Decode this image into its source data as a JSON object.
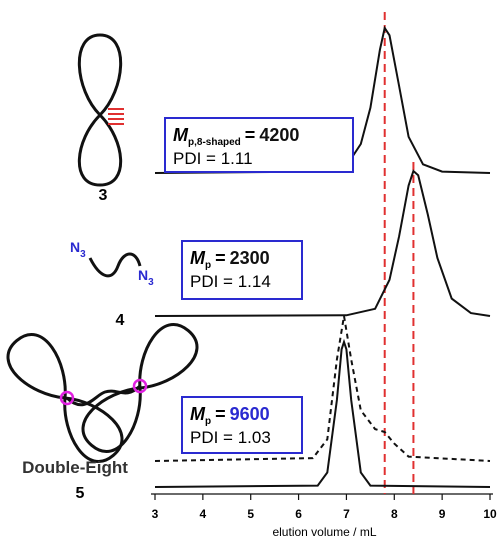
{
  "chart_data": {
    "type": "line",
    "xlabel": "elution volume / mL",
    "xlim": [
      3,
      10
    ],
    "xticks": [
      3,
      4,
      5,
      6,
      7,
      8,
      9,
      10
    ],
    "ylim": [
      0,
      1
    ],
    "reference_lines": [
      7.8,
      8.4
    ],
    "reference_color": "#e03030",
    "series": [
      {
        "color": "#111111",
        "dash": false,
        "x": [
          3,
          6.5,
          7.0,
          7.3,
          7.5,
          7.7,
          7.8,
          7.9,
          8.1,
          8.3,
          8.6,
          9.0,
          10
        ],
        "values": [
          0,
          0.01,
          0.05,
          0.2,
          0.45,
          0.85,
          1,
          0.95,
          0.6,
          0.25,
          0.06,
          0.01,
          0
        ]
      },
      {
        "color": "#111111",
        "dash": false,
        "x": [
          3,
          7.0,
          7.6,
          7.9,
          8.1,
          8.3,
          8.4,
          8.5,
          8.7,
          8.9,
          9.2,
          9.6,
          10
        ],
        "values": [
          0,
          0.005,
          0.05,
          0.25,
          0.55,
          0.9,
          1,
          0.97,
          0.7,
          0.4,
          0.12,
          0.02,
          0
        ]
      },
      {
        "color": "#111111",
        "dash": false,
        "x": [
          3,
          6.4,
          6.6,
          6.8,
          6.9,
          6.95,
          7.0,
          7.1,
          7.3,
          7.5,
          10
        ],
        "values": [
          0,
          0.01,
          0.1,
          0.6,
          0.95,
          1,
          0.95,
          0.6,
          0.1,
          0.01,
          0
        ]
      },
      {
        "color": "#111111",
        "dash": true,
        "x": [
          3,
          6.3,
          6.6,
          6.8,
          6.95,
          7.1,
          7.3,
          7.6,
          7.8,
          8.0,
          8.3,
          10
        ],
        "values": [
          0,
          0.02,
          0.15,
          0.7,
          1,
          0.7,
          0.35,
          0.22,
          0.2,
          0.12,
          0.03,
          0
        ]
      }
    ],
    "annotations": [
      {
        "symbol": "M",
        "subscript": "p,8-shaped",
        "equals": "=",
        "mp": "4200",
        "mp_color": "#111111",
        "pdi": "PDI = 1.11"
      },
      {
        "symbol": "M",
        "subscript": "p",
        "equals": "=",
        "mp": "2300",
        "mp_color": "#111111",
        "pdi": "PDI = 1.14"
      },
      {
        "symbol": "M",
        "subscript": "p",
        "equals": "=",
        "mp": "9600",
        "mp_color": "#2a2ad0",
        "pdi": "PDI = 1.03"
      }
    ]
  },
  "compounds": {
    "c3": "3",
    "c4": "4",
    "c5_name": "Double-Eight",
    "c5": "5",
    "azide": {
      "symbol": "N",
      "subscript": "3"
    }
  }
}
